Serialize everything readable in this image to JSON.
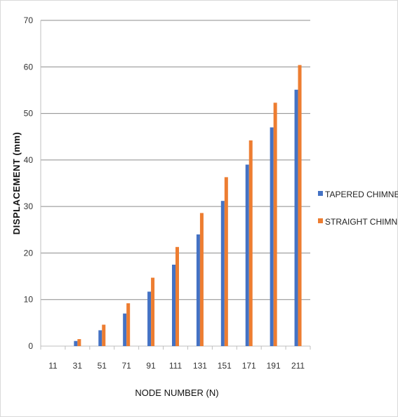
{
  "chart_data": {
    "type": "bar",
    "title": "",
    "xlabel": "NODE NUMBER (N)",
    "ylabel": "DISPLACEMENT (mm)",
    "categories": [
      "11",
      "31",
      "51",
      "71",
      "91",
      "111",
      "131",
      "151",
      "171",
      "191",
      "211"
    ],
    "ylim": [
      0,
      70
    ],
    "yticks": [
      "0",
      "10",
      "20",
      "30",
      "40",
      "50",
      "60",
      "70"
    ],
    "grid": true,
    "legend_position": "right",
    "series": [
      {
        "name": "TAPERED CHIMNEY",
        "color": "#4472c4",
        "values": [
          0,
          1.1,
          3.4,
          7.0,
          11.7,
          17.5,
          24.0,
          31.2,
          39.0,
          47.0,
          55.1
        ]
      },
      {
        "name": "STRAIGHT CHIMNEY",
        "color": "#ed7d31",
        "values": [
          0,
          1.5,
          4.6,
          9.2,
          14.7,
          21.3,
          28.6,
          36.3,
          44.2,
          52.3,
          60.4
        ]
      }
    ]
  }
}
